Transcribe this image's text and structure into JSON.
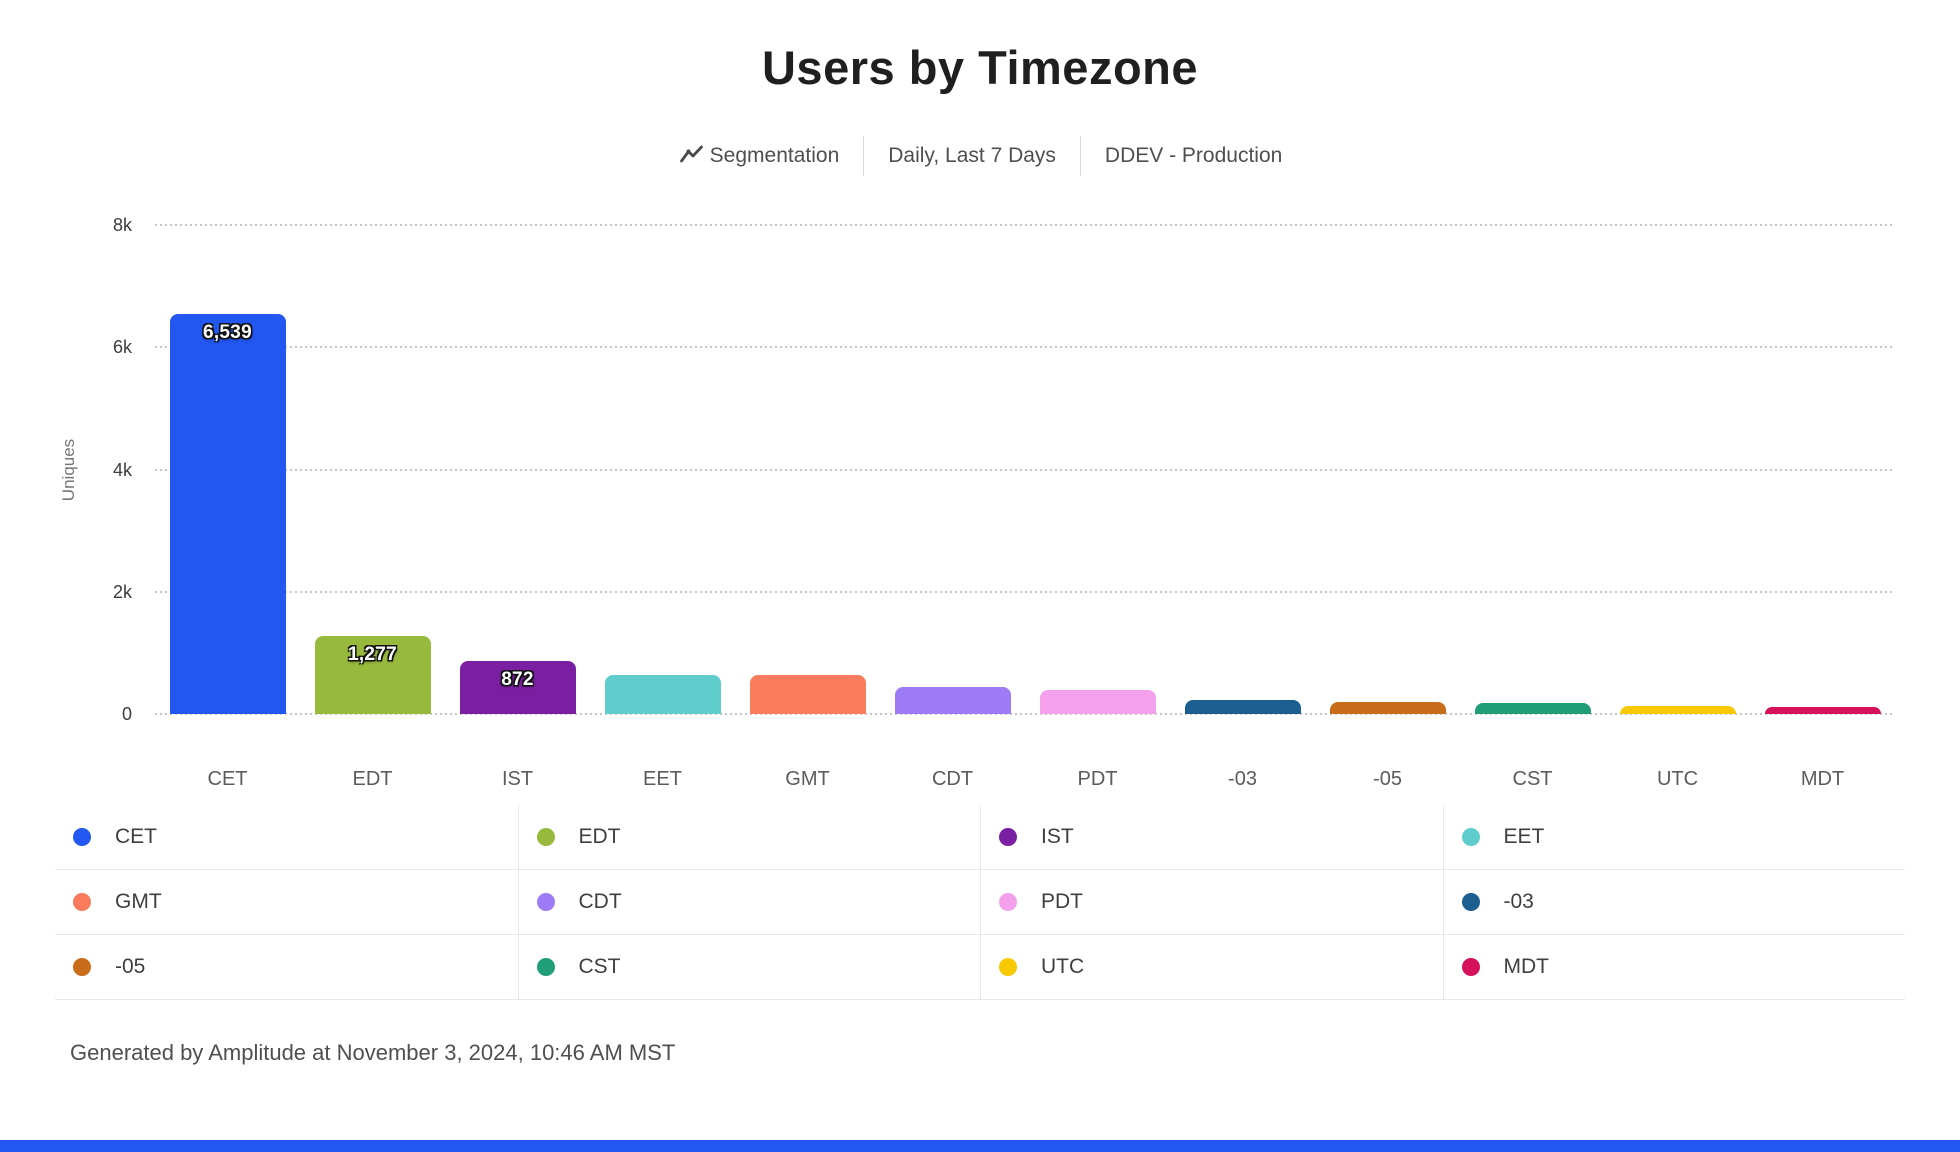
{
  "header": {
    "title": "Users by Timezone",
    "chart_type": "Segmentation",
    "interval_range": "Daily, Last 7 Days",
    "project": "DDEV - Production"
  },
  "chart_data": {
    "type": "bar",
    "title": "Users by Timezone",
    "xlabel": "",
    "ylabel": "Uniques",
    "ylim": [
      0,
      8000
    ],
    "grid": "horizontal-dotted",
    "legend_position": "bottom-table-4-columns",
    "yticks": [
      {
        "label": "8k",
        "value": 8000
      },
      {
        "label": "6k",
        "value": 6000
      },
      {
        "label": "4k",
        "value": 4000
      },
      {
        "label": "2k",
        "value": 2000
      },
      {
        "label": "0",
        "value": 0
      }
    ],
    "series": [
      {
        "category": "CET",
        "value": 6539,
        "display": "6,539",
        "color": "#2257f2"
      },
      {
        "category": "EDT",
        "value": 1277,
        "display": "1,277",
        "color": "#98ba3c"
      },
      {
        "category": "IST",
        "value": 872,
        "display": "872",
        "color": "#7b1fa2"
      },
      {
        "category": "EET",
        "value": 640,
        "display": null,
        "color": "#60cdcd"
      },
      {
        "category": "GMT",
        "value": 635,
        "display": null,
        "color": "#f97c5c"
      },
      {
        "category": "CDT",
        "value": 440,
        "display": null,
        "color": "#9e7cf7"
      },
      {
        "category": "PDT",
        "value": 385,
        "display": null,
        "color": "#f4a0ec"
      },
      {
        "category": "-03",
        "value": 230,
        "display": null,
        "color": "#1b5f91"
      },
      {
        "category": "-05",
        "value": 190,
        "display": null,
        "color": "#c96d1b"
      },
      {
        "category": "CST",
        "value": 185,
        "display": null,
        "color": "#209e77"
      },
      {
        "category": "UTC",
        "value": 135,
        "display": null,
        "color": "#f8c800"
      },
      {
        "category": "MDT",
        "value": 110,
        "display": null,
        "color": "#d6115c"
      }
    ]
  },
  "footer": {
    "text": "Generated by Amplitude at November 3, 2024, 10:46 AM MST"
  },
  "colors": {
    "accent_blue": "#2257f2",
    "gridline": "#c6c6c6",
    "divider": "#e8e8e8"
  }
}
